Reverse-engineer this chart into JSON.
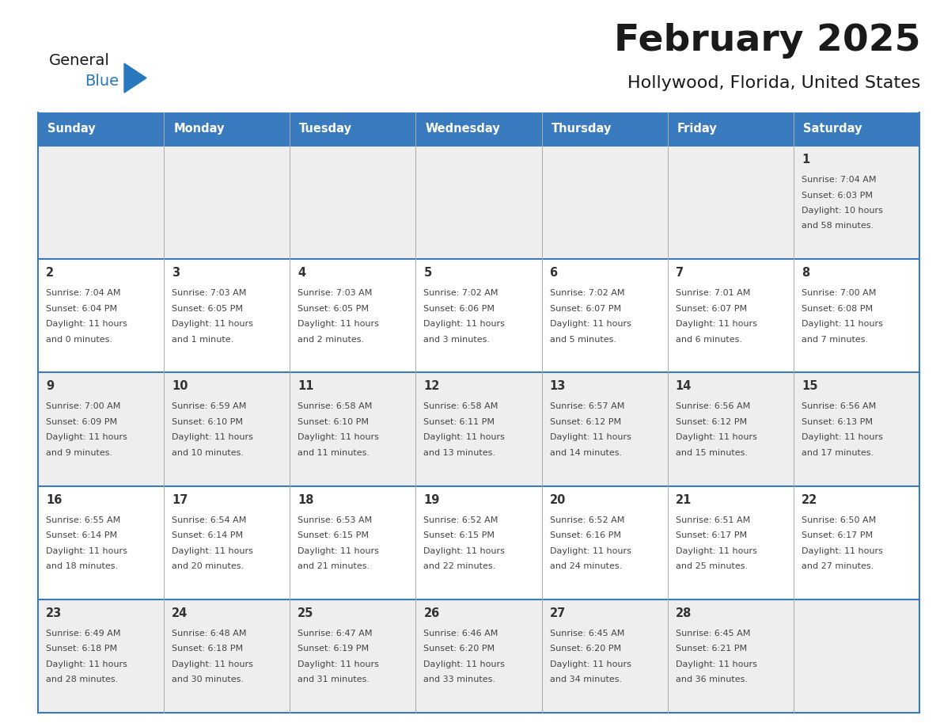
{
  "title": "February 2025",
  "subtitle": "Hollywood, Florida, United States",
  "header_bg": "#3a7abf",
  "header_text_color": "#ffffff",
  "day_headers": [
    "Sunday",
    "Monday",
    "Tuesday",
    "Wednesday",
    "Thursday",
    "Friday",
    "Saturday"
  ],
  "row_colors": [
    "#eeeeee",
    "#ffffff"
  ],
  "border_color": "#3a7abf",
  "text_color": "#444444",
  "day_num_color": "#333333",
  "logo_general_color": "#1a1a1a",
  "logo_blue_color": "#2878be",
  "weeks": [
    [
      {
        "day": null,
        "sunrise": null,
        "sunset": null,
        "daylight": null
      },
      {
        "day": null,
        "sunrise": null,
        "sunset": null,
        "daylight": null
      },
      {
        "day": null,
        "sunrise": null,
        "sunset": null,
        "daylight": null
      },
      {
        "day": null,
        "sunrise": null,
        "sunset": null,
        "daylight": null
      },
      {
        "day": null,
        "sunrise": null,
        "sunset": null,
        "daylight": null
      },
      {
        "day": null,
        "sunrise": null,
        "sunset": null,
        "daylight": null
      },
      {
        "day": 1,
        "sunrise": "7:04 AM",
        "sunset": "6:03 PM",
        "daylight_line1": "Daylight: 10 hours",
        "daylight_line2": "and 58 minutes."
      }
    ],
    [
      {
        "day": 2,
        "sunrise": "7:04 AM",
        "sunset": "6:04 PM",
        "daylight_line1": "Daylight: 11 hours",
        "daylight_line2": "and 0 minutes."
      },
      {
        "day": 3,
        "sunrise": "7:03 AM",
        "sunset": "6:05 PM",
        "daylight_line1": "Daylight: 11 hours",
        "daylight_line2": "and 1 minute."
      },
      {
        "day": 4,
        "sunrise": "7:03 AM",
        "sunset": "6:05 PM",
        "daylight_line1": "Daylight: 11 hours",
        "daylight_line2": "and 2 minutes."
      },
      {
        "day": 5,
        "sunrise": "7:02 AM",
        "sunset": "6:06 PM",
        "daylight_line1": "Daylight: 11 hours",
        "daylight_line2": "and 3 minutes."
      },
      {
        "day": 6,
        "sunrise": "7:02 AM",
        "sunset": "6:07 PM",
        "daylight_line1": "Daylight: 11 hours",
        "daylight_line2": "and 5 minutes."
      },
      {
        "day": 7,
        "sunrise": "7:01 AM",
        "sunset": "6:07 PM",
        "daylight_line1": "Daylight: 11 hours",
        "daylight_line2": "and 6 minutes."
      },
      {
        "day": 8,
        "sunrise": "7:00 AM",
        "sunset": "6:08 PM",
        "daylight_line1": "Daylight: 11 hours",
        "daylight_line2": "and 7 minutes."
      }
    ],
    [
      {
        "day": 9,
        "sunrise": "7:00 AM",
        "sunset": "6:09 PM",
        "daylight_line1": "Daylight: 11 hours",
        "daylight_line2": "and 9 minutes."
      },
      {
        "day": 10,
        "sunrise": "6:59 AM",
        "sunset": "6:10 PM",
        "daylight_line1": "Daylight: 11 hours",
        "daylight_line2": "and 10 minutes."
      },
      {
        "day": 11,
        "sunrise": "6:58 AM",
        "sunset": "6:10 PM",
        "daylight_line1": "Daylight: 11 hours",
        "daylight_line2": "and 11 minutes."
      },
      {
        "day": 12,
        "sunrise": "6:58 AM",
        "sunset": "6:11 PM",
        "daylight_line1": "Daylight: 11 hours",
        "daylight_line2": "and 13 minutes."
      },
      {
        "day": 13,
        "sunrise": "6:57 AM",
        "sunset": "6:12 PM",
        "daylight_line1": "Daylight: 11 hours",
        "daylight_line2": "and 14 minutes."
      },
      {
        "day": 14,
        "sunrise": "6:56 AM",
        "sunset": "6:12 PM",
        "daylight_line1": "Daylight: 11 hours",
        "daylight_line2": "and 15 minutes."
      },
      {
        "day": 15,
        "sunrise": "6:56 AM",
        "sunset": "6:13 PM",
        "daylight_line1": "Daylight: 11 hours",
        "daylight_line2": "and 17 minutes."
      }
    ],
    [
      {
        "day": 16,
        "sunrise": "6:55 AM",
        "sunset": "6:14 PM",
        "daylight_line1": "Daylight: 11 hours",
        "daylight_line2": "and 18 minutes."
      },
      {
        "day": 17,
        "sunrise": "6:54 AM",
        "sunset": "6:14 PM",
        "daylight_line1": "Daylight: 11 hours",
        "daylight_line2": "and 20 minutes."
      },
      {
        "day": 18,
        "sunrise": "6:53 AM",
        "sunset": "6:15 PM",
        "daylight_line1": "Daylight: 11 hours",
        "daylight_line2": "and 21 minutes."
      },
      {
        "day": 19,
        "sunrise": "6:52 AM",
        "sunset": "6:15 PM",
        "daylight_line1": "Daylight: 11 hours",
        "daylight_line2": "and 22 minutes."
      },
      {
        "day": 20,
        "sunrise": "6:52 AM",
        "sunset": "6:16 PM",
        "daylight_line1": "Daylight: 11 hours",
        "daylight_line2": "and 24 minutes."
      },
      {
        "day": 21,
        "sunrise": "6:51 AM",
        "sunset": "6:17 PM",
        "daylight_line1": "Daylight: 11 hours",
        "daylight_line2": "and 25 minutes."
      },
      {
        "day": 22,
        "sunrise": "6:50 AM",
        "sunset": "6:17 PM",
        "daylight_line1": "Daylight: 11 hours",
        "daylight_line2": "and 27 minutes."
      }
    ],
    [
      {
        "day": 23,
        "sunrise": "6:49 AM",
        "sunset": "6:18 PM",
        "daylight_line1": "Daylight: 11 hours",
        "daylight_line2": "and 28 minutes."
      },
      {
        "day": 24,
        "sunrise": "6:48 AM",
        "sunset": "6:18 PM",
        "daylight_line1": "Daylight: 11 hours",
        "daylight_line2": "and 30 minutes."
      },
      {
        "day": 25,
        "sunrise": "6:47 AM",
        "sunset": "6:19 PM",
        "daylight_line1": "Daylight: 11 hours",
        "daylight_line2": "and 31 minutes."
      },
      {
        "day": 26,
        "sunrise": "6:46 AM",
        "sunset": "6:20 PM",
        "daylight_line1": "Daylight: 11 hours",
        "daylight_line2": "and 33 minutes."
      },
      {
        "day": 27,
        "sunrise": "6:45 AM",
        "sunset": "6:20 PM",
        "daylight_line1": "Daylight: 11 hours",
        "daylight_line2": "and 34 minutes."
      },
      {
        "day": 28,
        "sunrise": "6:45 AM",
        "sunset": "6:21 PM",
        "daylight_line1": "Daylight: 11 hours",
        "daylight_line2": "and 36 minutes."
      },
      {
        "day": null,
        "sunrise": null,
        "sunset": null,
        "daylight_line1": null,
        "daylight_line2": null
      }
    ]
  ],
  "fig_width": 11.88,
  "fig_height": 9.18,
  "dpi": 100
}
